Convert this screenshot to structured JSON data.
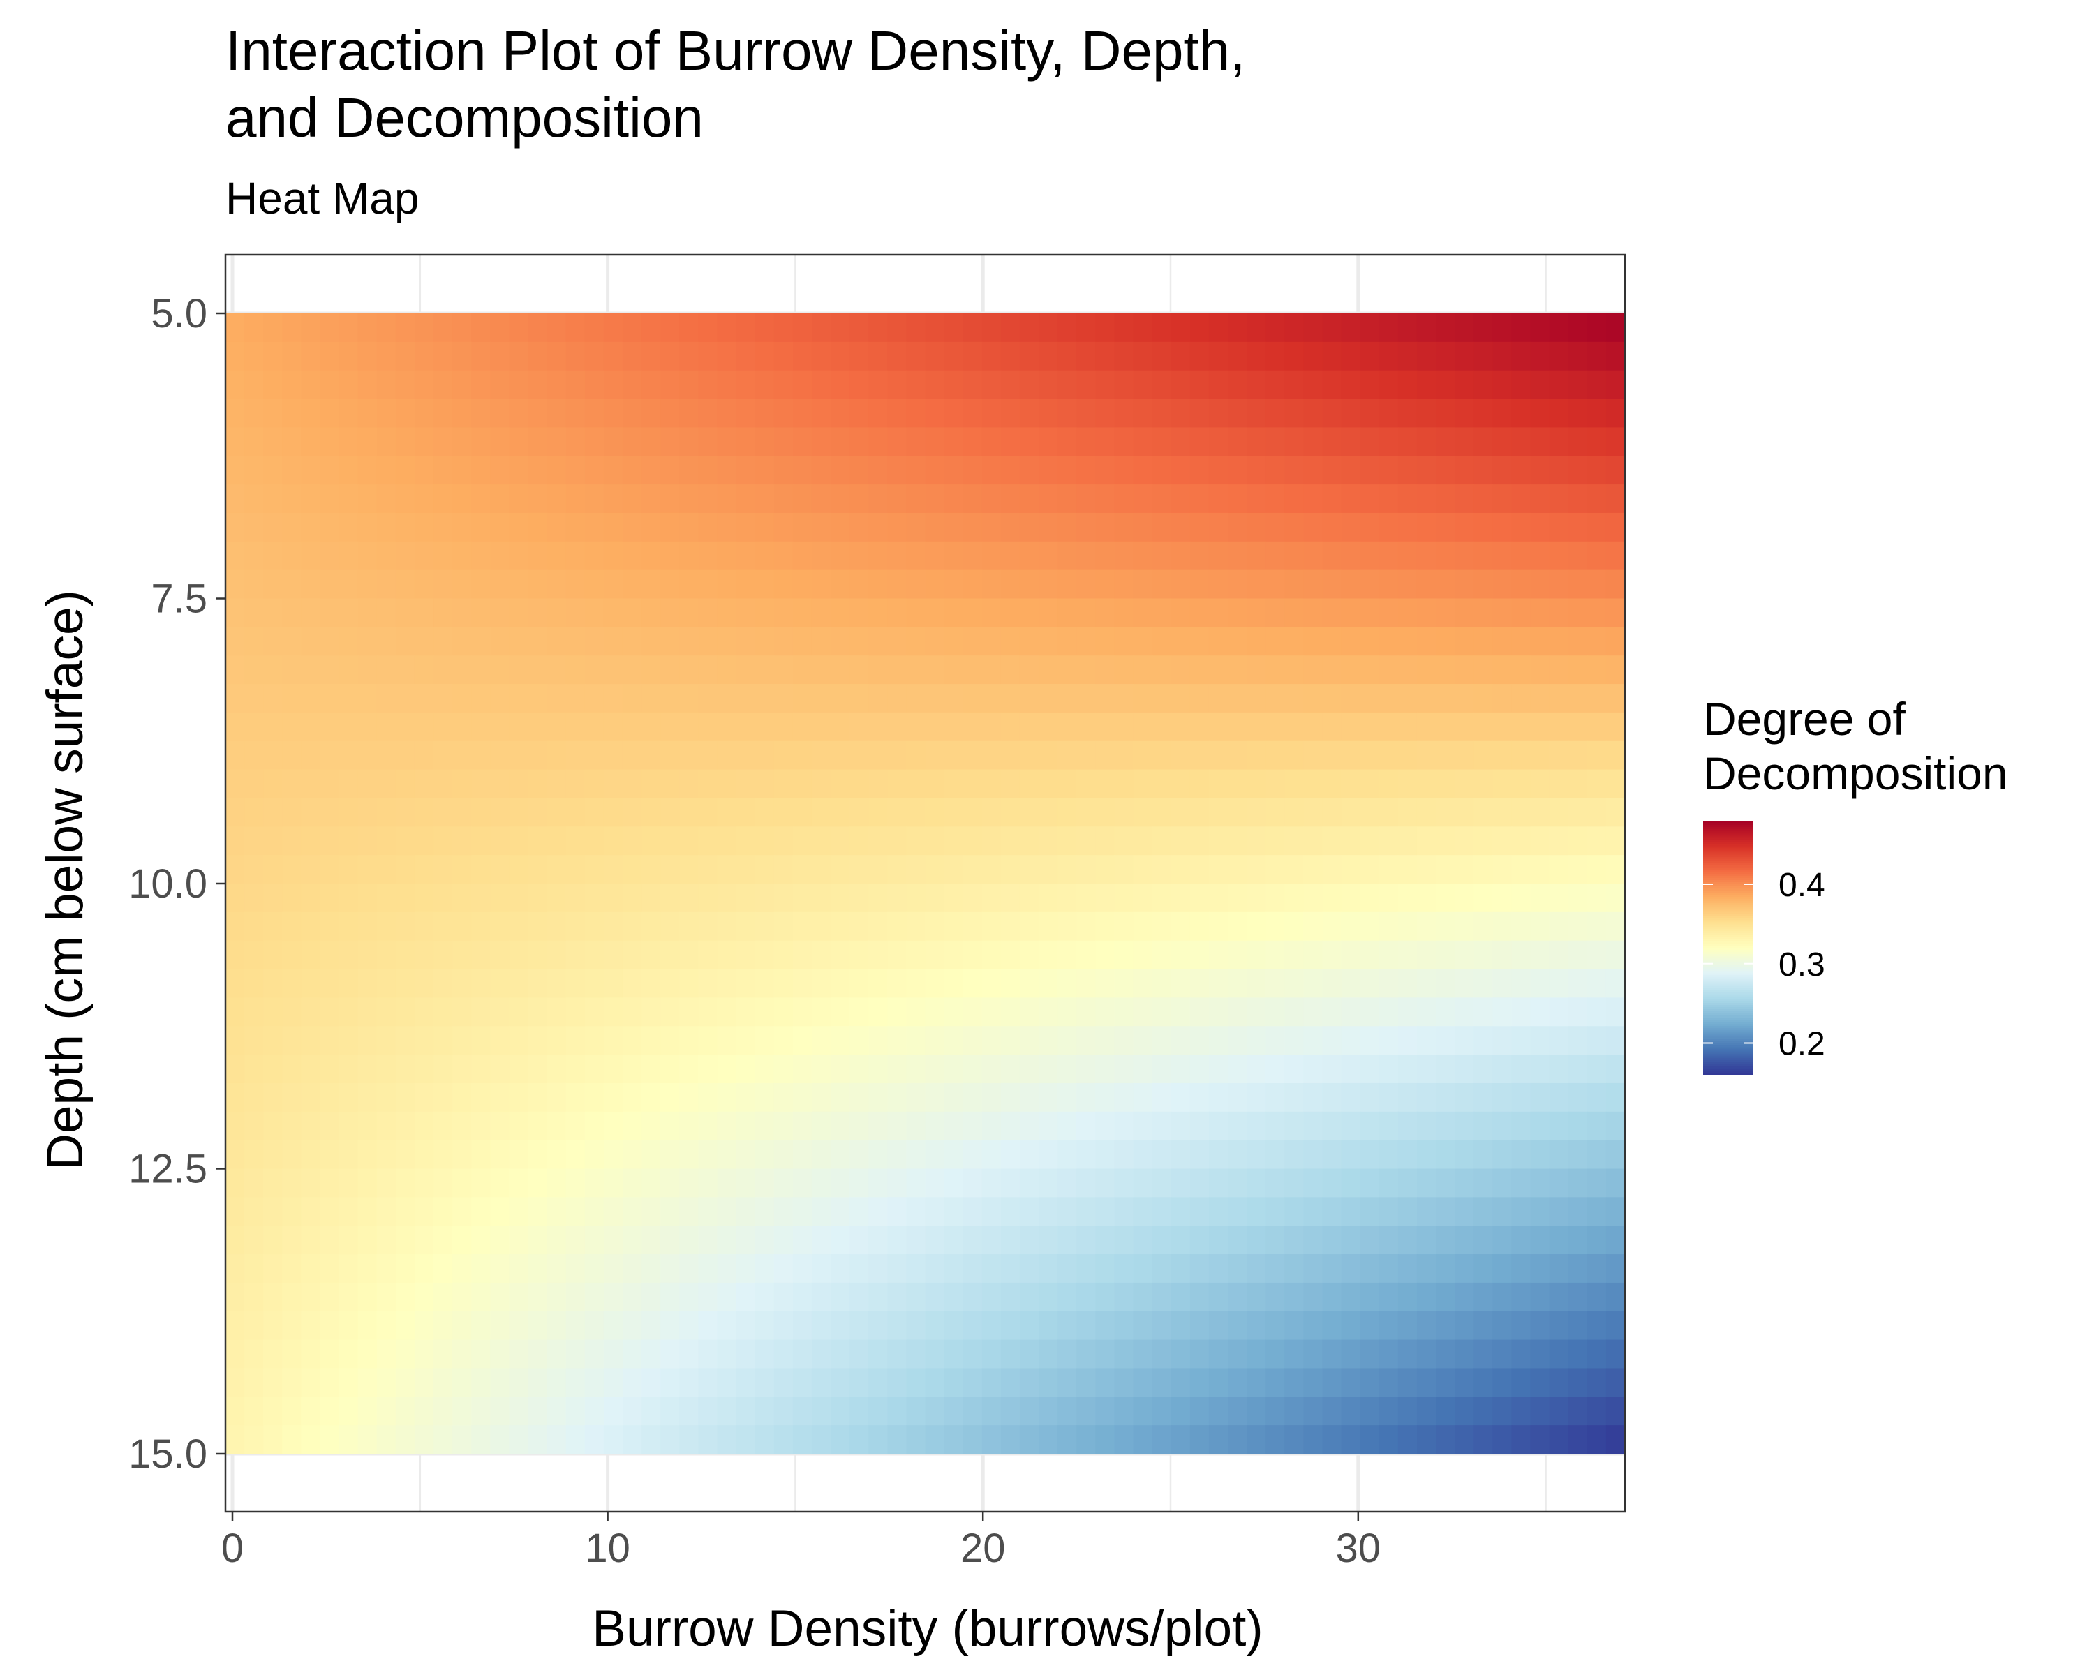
{
  "chart_data": {
    "type": "heatmap",
    "title_lines": [
      "Interaction Plot of Burrow Density, Depth,",
      "and Decomposition"
    ],
    "subtitle": "Heat Map",
    "xlabel": "Burrow Density (burrows/plot)",
    "ylabel": "Depth (cm below surface)",
    "x_range": [
      0,
      37
    ],
    "y_range": [
      5,
      15
    ],
    "y_reversed": true,
    "x_ticks": [
      0,
      10,
      20,
      30
    ],
    "x_tick_labels": [
      "0",
      "10",
      "20",
      "30"
    ],
    "y_ticks": [
      5,
      7.5,
      10,
      12.5,
      15
    ],
    "y_tick_labels": [
      "5.0",
      "7.5",
      "10.0",
      "12.5",
      "15.0"
    ],
    "z_corners": {
      "x0_y5": 0.385,
      "x37_y5": 0.48,
      "x0_y15": 0.33,
      "x37_y15": 0.16
    },
    "legend": {
      "title_lines": [
        "Degree of",
        "Decomposition"
      ],
      "position": "right",
      "range": [
        0.16,
        0.48
      ],
      "ticks": [
        0.4,
        0.3,
        0.2
      ],
      "tick_labels": [
        "0.4",
        "0.3",
        "0.2"
      ],
      "palette": [
        "#313695",
        "#4575b4",
        "#74add1",
        "#abd9e9",
        "#e0f3f8",
        "#ffffbf",
        "#fee090",
        "#fdae61",
        "#f46d43",
        "#d73027",
        "#a50026"
      ]
    },
    "grid": true,
    "theme": "bw"
  }
}
